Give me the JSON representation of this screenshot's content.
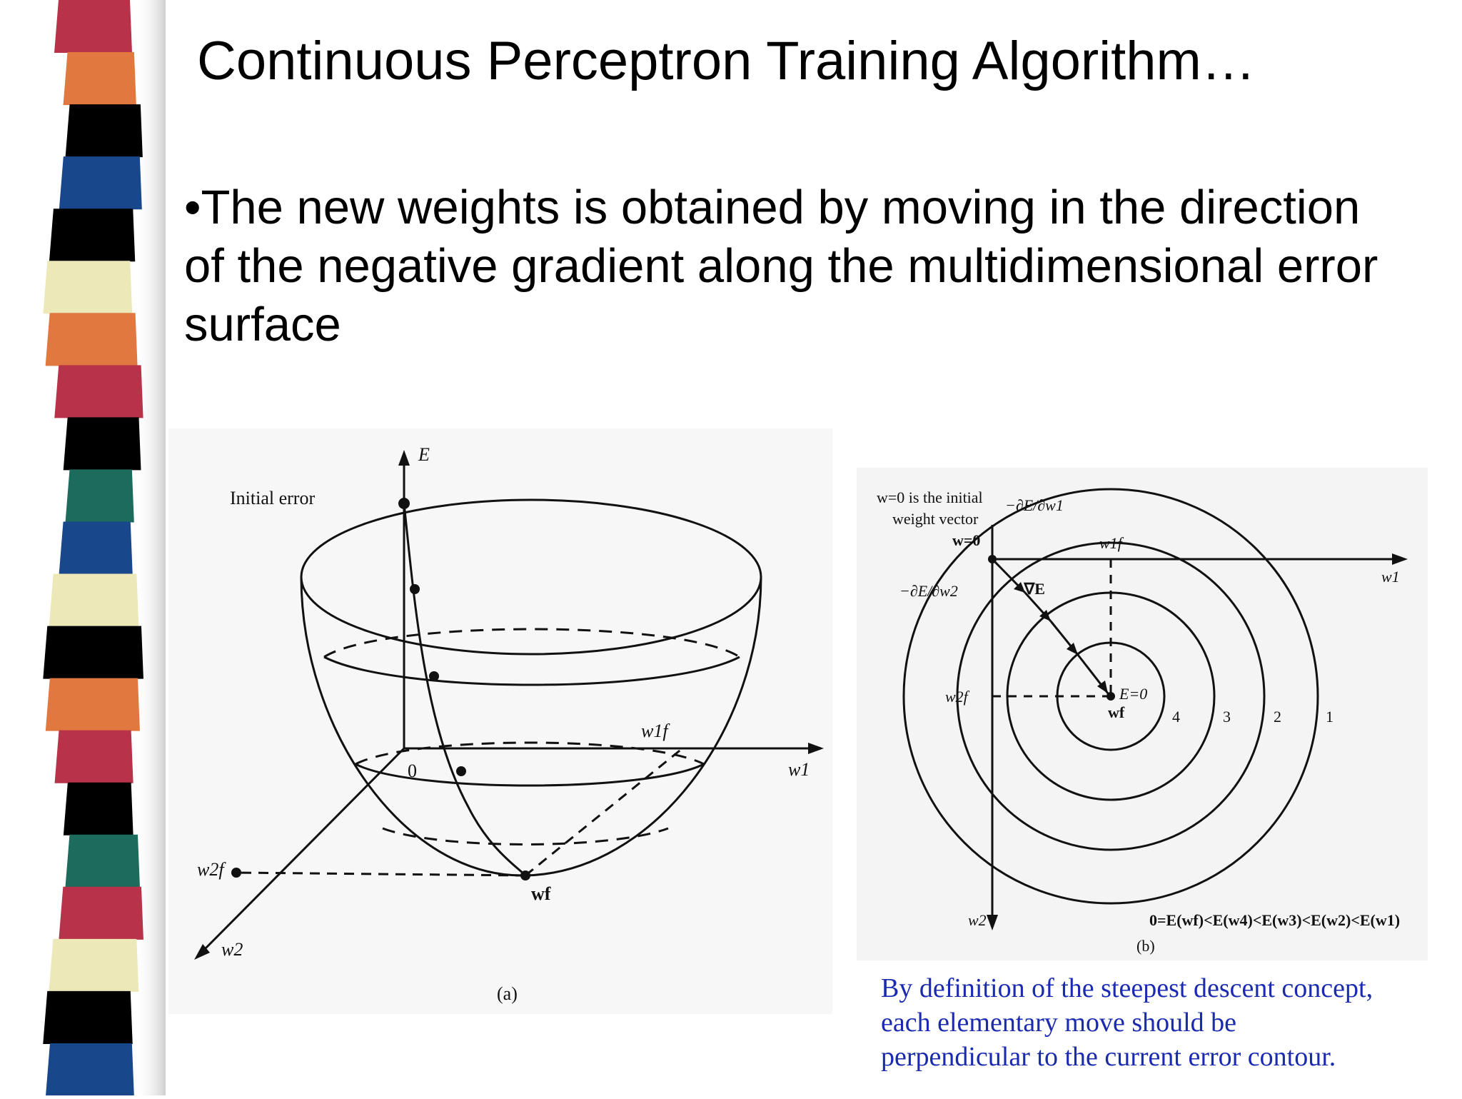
{
  "slide": {
    "title": "Continuous Perceptron Training Algorithm…",
    "bullet_lines": [
      "•The new weights is obtained by moving in the direction",
      "of the negative gradient along the multidimensional error",
      "surface"
    ],
    "stripe_colors": [
      "#b8334a",
      "#e0783f",
      "#000000",
      "#18478c",
      "#000000",
      "#ece8b8",
      "#e0783f",
      "#b8334a",
      "#000000",
      "#1d6b5d",
      "#18478c",
      "#ece8b8",
      "#000000",
      "#e0783f",
      "#b8334a",
      "#000000",
      "#1d6b5d",
      "#b8334a",
      "#ece8b8",
      "#000000",
      "#18478c"
    ]
  },
  "figure_a": {
    "axis_e": "E",
    "initial_error": "Initial error",
    "origin": "0",
    "w1f": "w1f",
    "w1": "w1",
    "w2f": "w2f",
    "wf": "wf",
    "w2": "w2",
    "label": "(a)"
  },
  "figure_b": {
    "note_line1": "w=0 is the initial",
    "note_line2": "weight vector",
    "w0": "w=0",
    "dE_dw1": "−∂E/∂w1",
    "dE_dw2": "−∂E/∂w2",
    "grad": "−∇E",
    "w1f": "w1f",
    "w1": "w1",
    "w2f": "w2f",
    "e0": "E=0",
    "wf": "wf",
    "contour_labels": [
      "4",
      "3",
      "2",
      "1"
    ],
    "w2": "w2",
    "inequality": "0=E(wf)<E(w4)<E(w3)<E(w2)<E(w1)",
    "label": "(b)"
  },
  "caption": {
    "lines": [
      "By definition of the steepest descent concept,",
      "each elementary move should be",
      "perpendicular to the current error contour."
    ]
  }
}
